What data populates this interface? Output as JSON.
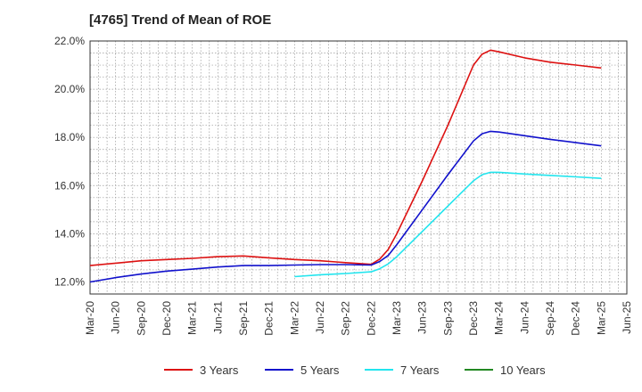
{
  "chart_data": {
    "type": "line",
    "title": "[4765]  Trend of Mean of ROE",
    "xlabel": "",
    "ylabel": "",
    "x_ticks": [
      "Mar-20",
      "Jun-20",
      "Sep-20",
      "Dec-20",
      "Mar-21",
      "Jun-21",
      "Sep-21",
      "Dec-21",
      "Mar-22",
      "Jun-22",
      "Sep-22",
      "Dec-22",
      "Mar-23",
      "Jun-23",
      "Sep-23",
      "Dec-23",
      "Mar-24",
      "Jun-24",
      "Sep-24",
      "Dec-24",
      "Mar-25",
      "Jun-25"
    ],
    "y_ticks": [
      "12.0%",
      "14.0%",
      "16.0%",
      "18.0%",
      "20.0%",
      "22.0%"
    ],
    "ylim": [
      11.5,
      22.0
    ],
    "grid": true,
    "legend_position": "bottom",
    "series": [
      {
        "name": "3 Years",
        "color": "#dd1111",
        "points": [
          [
            "Mar-20",
            12.68
          ],
          [
            "Jun-20",
            12.78
          ],
          [
            "Sep-20",
            12.88
          ],
          [
            "Dec-20",
            12.93
          ],
          [
            "Mar-21",
            12.98
          ],
          [
            "Jun-21",
            13.05
          ],
          [
            "Sep-21",
            13.08
          ],
          [
            "Dec-21",
            13.0
          ],
          [
            "Mar-22",
            12.93
          ],
          [
            "Jun-22",
            12.88
          ],
          [
            "Sep-22",
            12.8
          ],
          [
            "Dec-22",
            12.73
          ],
          [
            "Jan-23",
            12.95
          ],
          [
            "Feb-23",
            13.35
          ],
          [
            "Mar-23",
            14.0
          ],
          [
            "Jun-23",
            16.2
          ],
          [
            "Sep-23",
            18.5
          ],
          [
            "Dec-23",
            21.0
          ],
          [
            "Jan-24",
            21.45
          ],
          [
            "Feb-24",
            21.62
          ],
          [
            "Mar-24",
            21.55
          ],
          [
            "Jun-24",
            21.3
          ],
          [
            "Sep-24",
            21.12
          ],
          [
            "Dec-24",
            21.0
          ],
          [
            "Mar-25",
            20.88
          ]
        ]
      },
      {
        "name": "5 Years",
        "color": "#1111cc",
        "points": [
          [
            "Mar-20",
            12.0
          ],
          [
            "Jun-20",
            12.18
          ],
          [
            "Sep-20",
            12.33
          ],
          [
            "Dec-20",
            12.45
          ],
          [
            "Mar-21",
            12.53
          ],
          [
            "Jun-21",
            12.62
          ],
          [
            "Sep-21",
            12.68
          ],
          [
            "Dec-21",
            12.68
          ],
          [
            "Mar-22",
            12.7
          ],
          [
            "Jun-22",
            12.72
          ],
          [
            "Sep-22",
            12.72
          ],
          [
            "Dec-22",
            12.7
          ],
          [
            "Jan-23",
            12.85
          ],
          [
            "Feb-23",
            13.1
          ],
          [
            "Mar-23",
            13.55
          ],
          [
            "Jun-23",
            15.0
          ],
          [
            "Sep-23",
            16.45
          ],
          [
            "Dec-23",
            17.85
          ],
          [
            "Jan-24",
            18.15
          ],
          [
            "Feb-24",
            18.25
          ],
          [
            "Mar-24",
            18.22
          ],
          [
            "Jun-24",
            18.07
          ],
          [
            "Sep-24",
            17.92
          ],
          [
            "Dec-24",
            17.78
          ],
          [
            "Mar-25",
            17.65
          ]
        ]
      },
      {
        "name": "7 Years",
        "color": "#22e5ee",
        "points": [
          [
            "Mar-22",
            12.22
          ],
          [
            "Jun-22",
            12.3
          ],
          [
            "Sep-22",
            12.35
          ],
          [
            "Dec-22",
            12.42
          ],
          [
            "Jan-23",
            12.55
          ],
          [
            "Feb-23",
            12.75
          ],
          [
            "Mar-23",
            13.05
          ],
          [
            "Jun-23",
            14.1
          ],
          [
            "Sep-23",
            15.15
          ],
          [
            "Dec-23",
            16.2
          ],
          [
            "Jan-24",
            16.45
          ],
          [
            "Feb-24",
            16.55
          ],
          [
            "Mar-24",
            16.55
          ],
          [
            "Jun-24",
            16.48
          ],
          [
            "Sep-24",
            16.42
          ],
          [
            "Dec-24",
            16.36
          ],
          [
            "Mar-25",
            16.3
          ]
        ]
      },
      {
        "name": "10 Years",
        "color": "#228822",
        "points": []
      }
    ]
  }
}
